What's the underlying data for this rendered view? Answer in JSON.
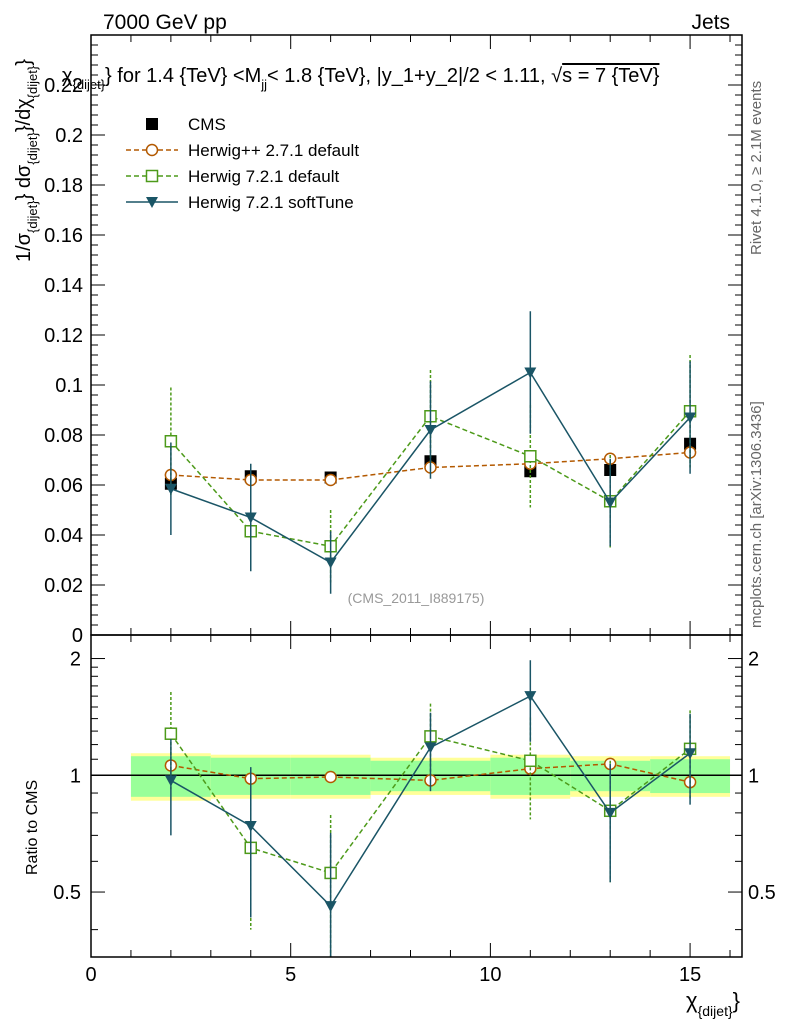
{
  "header": {
    "left_label": "7000 GeV pp",
    "right_label": "Jets",
    "side_label_top": "Rivet 4.1.0, ≥ 2.1M events",
    "side_label_bottom": "mcplots.cern.ch [arXiv:1306.3436]"
  },
  "colors": {
    "cms": "#000000",
    "herwigpp": "#b35900",
    "herwig721": "#4d9a1a",
    "softtune": "#1a5566",
    "band_inner": "#99ff99",
    "band_outer": "#ffff99"
  },
  "chart_data": {
    "type": "line",
    "title": "χ_{dijet} for 1.4 {TeV} <M_jj < 1.8 {TeV}, |y_1+y_2|/2 < 1.11, √s = 7 {TeV}",
    "title_parts": {
      "sym": "χ",
      "sub": "{dijet}",
      "t1": "} for 1.4 {TeV} <M",
      "sub2": "jj",
      "t2": "< 1.8 {TeV}, |y_1+y_2|/2 < 1.11, ",
      "sqrt": "√",
      "t3": "s = 7 {TeV}"
    },
    "ylabel": "1/σ_{dijet} dσ_{dijet}/dχ_{dijet}",
    "ylabel_parts": {
      "a": "1/σ",
      "b": "{dijet}",
      "c": "} dσ",
      "d": "{dijet}",
      "e": "}/dχ",
      "f": "{dijet}",
      "g": "}"
    },
    "xlabel": "χ_{dijet}",
    "xlabel_parts": {
      "sym": "χ",
      "sub": "{dijet}",
      "end": "}"
    },
    "ratio_ylabel": "Ratio to CMS",
    "watermark": "(CMS_2011_I889175)",
    "xlim": [
      0,
      16.3
    ],
    "ylim": [
      0,
      0.24
    ],
    "ratio_ylim": [
      0.34,
      2.3
    ],
    "x_ticks": [
      0,
      5,
      10,
      15
    ],
    "y_ticks": [
      0,
      0.02,
      0.04,
      0.06,
      0.08,
      0.1,
      0.12,
      0.14,
      0.16,
      0.18,
      0.2,
      0.22
    ],
    "y_tick_labels": [
      "0",
      "0.02",
      "0.04",
      "0.06",
      "0.08",
      "0.1",
      "0.12",
      "0.14",
      "0.16",
      "0.18",
      "0.2",
      "0.22"
    ],
    "ratio_ticks": [
      0.5,
      1,
      2
    ],
    "ratio_tick_labels": [
      "0.5",
      "1",
      "2"
    ],
    "bins": [
      [
        1,
        3
      ],
      [
        3,
        5
      ],
      [
        5,
        7
      ],
      [
        7,
        10
      ],
      [
        10,
        12
      ],
      [
        12,
        14
      ],
      [
        14,
        16
      ]
    ],
    "x": [
      2,
      4,
      6,
      8.5,
      11,
      13,
      15
    ],
    "legend": {
      "position": "top-left",
      "entries": [
        "CMS",
        "Herwig++ 2.7.1 default",
        "Herwig 7.2.1 default",
        "Herwig 7.2.1 softTune"
      ]
    },
    "data": {
      "name": "CMS",
      "values": [
        0.0605,
        0.0635,
        0.063,
        0.0695,
        0.0655,
        0.066,
        0.0765
      ],
      "yerr": [
        0.0015,
        0.0015,
        0.0015,
        0.002,
        0.002,
        0.0015,
        0.002
      ],
      "band_inner": [
        0.12,
        0.11,
        0.11,
        0.09,
        0.11,
        0.09,
        0.1
      ],
      "band_outer": [
        0.14,
        0.13,
        0.13,
        0.11,
        0.13,
        0.12,
        0.12
      ]
    },
    "series": [
      {
        "name": "Herwig++ 2.7.1 default",
        "marker": "circle",
        "style": "dashed",
        "values": [
          0.064,
          0.062,
          0.062,
          0.067,
          0.0685,
          0.0705,
          0.073
        ],
        "yerr": [
          0.001,
          0.001,
          0.001,
          0.003,
          0.001,
          0.001,
          0.001
        ],
        "ratio": [
          1.06,
          0.98,
          0.99,
          0.97,
          1.04,
          1.07,
          0.96
        ],
        "ratio_err": [
          0.02,
          0.02,
          0.02,
          0.04,
          0.02,
          0.02,
          0.02
        ]
      },
      {
        "name": "Herwig 7.2.1 default",
        "marker": "square",
        "style": "dashed",
        "values": [
          0.0775,
          0.0415,
          0.0355,
          0.0875,
          0.0715,
          0.0535,
          0.0895
        ],
        "yerr": [
          0.0215,
          0.0155,
          0.0145,
          0.0185,
          0.0205,
          0.0185,
          0.0225
        ],
        "ratio": [
          1.28,
          0.65,
          0.56,
          1.26,
          1.09,
          0.81,
          1.17
        ],
        "ratio_err": [
          0.36,
          0.25,
          0.23,
          0.27,
          0.32,
          0.28,
          0.3
        ]
      },
      {
        "name": "Herwig 7.2.1 softTune",
        "marker": "triangle-down",
        "style": "solid",
        "values": [
          0.0585,
          0.047,
          0.029,
          0.082,
          0.105,
          0.053,
          0.087
        ],
        "yerr": [
          0.0185,
          0.0215,
          0.0125,
          0.0195,
          0.0245,
          0.0175,
          0.0225
        ],
        "ratio": [
          0.97,
          0.74,
          0.46,
          1.18,
          1.6,
          0.8,
          1.14
        ],
        "ratio_err": [
          0.27,
          0.31,
          0.25,
          0.27,
          0.38,
          0.27,
          0.3
        ]
      }
    ]
  }
}
